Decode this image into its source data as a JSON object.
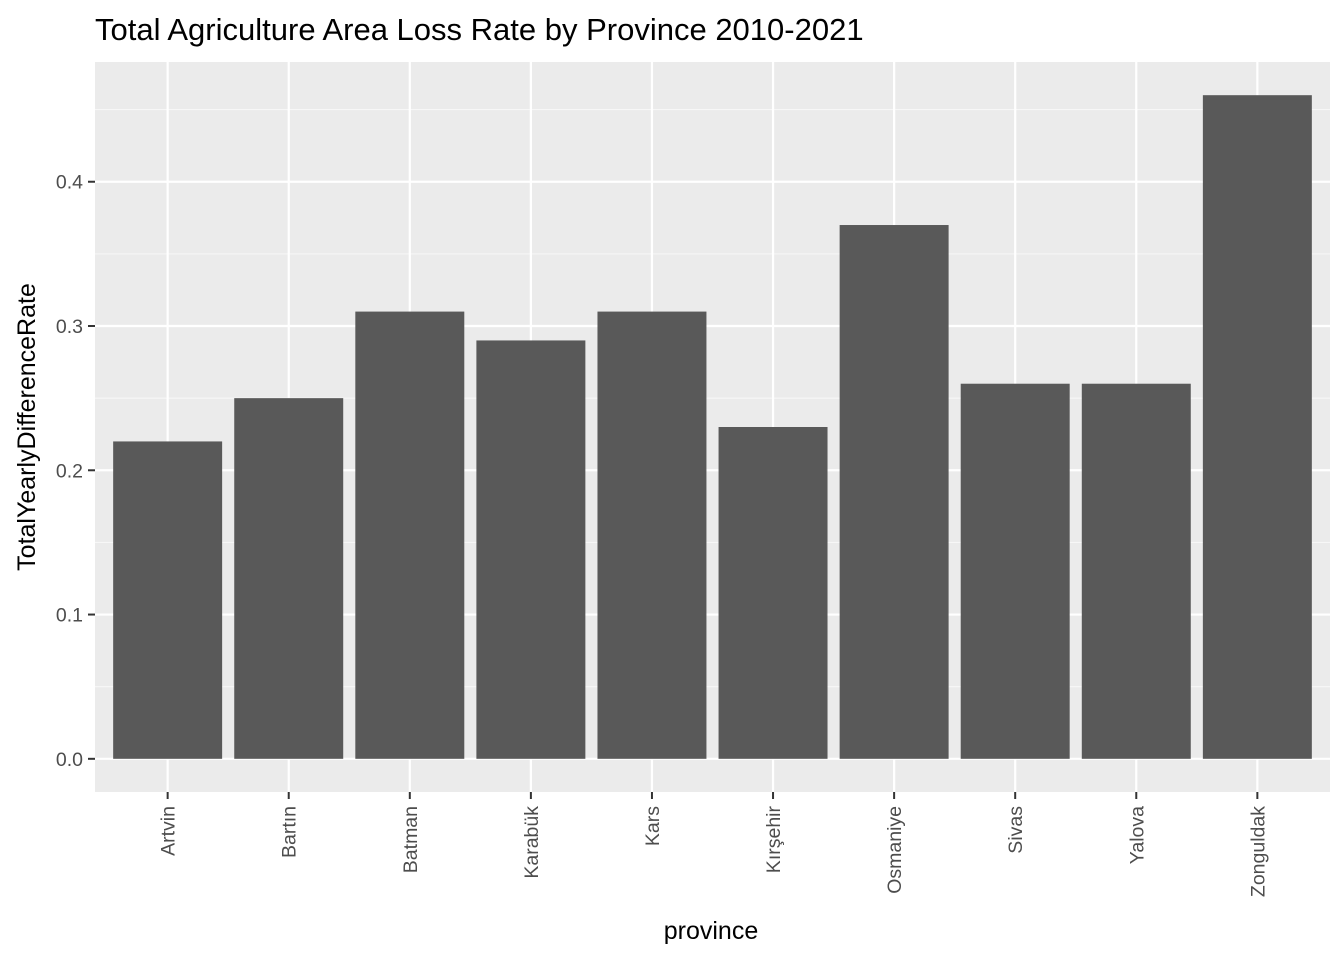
{
  "chart_data": {
    "type": "bar",
    "title": "Total Agriculture Area Loss Rate by Province 2010-2021",
    "xlabel": "province",
    "ylabel": "TotalYearlyDifferenceRate",
    "categories": [
      "Artvin",
      "Bartın",
      "Batman",
      "Karabük",
      "Kars",
      "Kırşehir",
      "Osmaniye",
      "Sivas",
      "Yalova",
      "Zonguldak"
    ],
    "values": [
      0.22,
      0.25,
      0.31,
      0.29,
      0.31,
      0.23,
      0.37,
      0.26,
      0.26,
      0.46
    ],
    "ylim": [
      -0.023,
      0.483
    ],
    "yticks": [
      0.0,
      0.1,
      0.2,
      0.3,
      0.4
    ],
    "ytick_labels": [
      "0.0",
      "0.1",
      "0.2",
      "0.3",
      "0.4"
    ],
    "grid": true,
    "legend": "none",
    "colors": {
      "bar": "#595959",
      "panel_background": "#ebebeb",
      "grid_major": "#ffffff",
      "grid_minor": "#f7f7f7",
      "tick_text": "#4d4d4d",
      "tick_mark": "#333333"
    }
  }
}
